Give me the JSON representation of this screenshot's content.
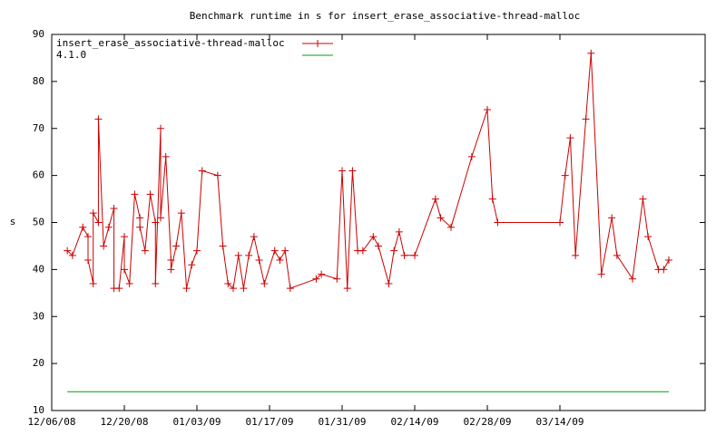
{
  "chart_data": {
    "type": "line",
    "title": "Benchmark runtime in s for insert_erase_associative-thread-malloc",
    "ylabel": "s",
    "xlim": [
      "2008-12-06",
      "2009-04-11"
    ],
    "xticks": [
      {
        "value": "2008-12-06",
        "label": "12/06/08"
      },
      {
        "value": "2008-12-20",
        "label": "12/20/08"
      },
      {
        "value": "2009-01-03",
        "label": "01/03/09"
      },
      {
        "value": "2009-01-17",
        "label": "01/17/09"
      },
      {
        "value": "2009-01-31",
        "label": "01/31/09"
      },
      {
        "value": "2009-02-14",
        "label": "02/14/09"
      },
      {
        "value": "2009-02-28",
        "label": "02/28/09"
      },
      {
        "value": "2009-03-14",
        "label": "03/14/09"
      }
    ],
    "ylim": [
      10,
      90
    ],
    "yticks": [
      10,
      20,
      30,
      40,
      50,
      60,
      70,
      80,
      90
    ],
    "legend": "top-left",
    "series": [
      {
        "name": "insert_erase_associative-thread-malloc",
        "color": "#cc0000",
        "marker": "+",
        "x": [
          "2008-12-09",
          "2008-12-10",
          "2008-12-12",
          "2008-12-13",
          "2008-12-13",
          "2008-12-14",
          "2008-12-14",
          "2008-12-15",
          "2008-12-15",
          "2008-12-16",
          "2008-12-17",
          "2008-12-18",
          "2008-12-18",
          "2008-12-19",
          "2008-12-20",
          "2008-12-20",
          "2008-12-21",
          "2008-12-22",
          "2008-12-23",
          "2008-12-23",
          "2008-12-24",
          "2008-12-25",
          "2008-12-26",
          "2008-12-26",
          "2008-12-27",
          "2008-12-27",
          "2008-12-28",
          "2008-12-29",
          "2008-12-29",
          "2008-12-30",
          "2008-12-31",
          "2009-01-01",
          "2009-01-02",
          "2009-01-03",
          "2009-01-04",
          "2009-01-07",
          "2009-01-08",
          "2009-01-09",
          "2009-01-10",
          "2009-01-11",
          "2009-01-12",
          "2009-01-13",
          "2009-01-14",
          "2009-01-15",
          "2009-01-16",
          "2009-01-18",
          "2009-01-19",
          "2009-01-20",
          "2009-01-21",
          "2009-01-26",
          "2009-01-27",
          "2009-01-30",
          "2009-01-31",
          "2009-02-01",
          "2009-02-02",
          "2009-02-03",
          "2009-02-04",
          "2009-02-06",
          "2009-02-07",
          "2009-02-09",
          "2009-02-10",
          "2009-02-11",
          "2009-02-12",
          "2009-02-14",
          "2009-02-18",
          "2009-02-19",
          "2009-02-21",
          "2009-02-25",
          "2009-02-28",
          "2009-03-01",
          "2009-03-02",
          "2009-03-14",
          "2009-03-15",
          "2009-03-16",
          "2009-03-17",
          "2009-03-19",
          "2009-03-20",
          "2009-03-22",
          "2009-03-24",
          "2009-03-25",
          "2009-03-28",
          "2009-03-30",
          "2009-03-31",
          "2009-04-02",
          "2009-04-03",
          "2009-04-04"
        ],
        "values": [
          44,
          43,
          49,
          47,
          42,
          37,
          52,
          50,
          72,
          45,
          49,
          53,
          36,
          36,
          47,
          40,
          37,
          56,
          51,
          49,
          44,
          56,
          50,
          37,
          70,
          51,
          64,
          42,
          40,
          45,
          52,
          36,
          41,
          44,
          61,
          60,
          45,
          37,
          36,
          43,
          36,
          43,
          47,
          42,
          37,
          44,
          42,
          44,
          36,
          38,
          39,
          38,
          61,
          36,
          61,
          44,
          44,
          47,
          45,
          37,
          44,
          48,
          43,
          43,
          55,
          51,
          49,
          64,
          74,
          55,
          50,
          50,
          60,
          68,
          43,
          72,
          86,
          39,
          51,
          43,
          38,
          55,
          47,
          40,
          40,
          42
        ]
      },
      {
        "name": "4.1.0",
        "color": "#00a000",
        "x": [
          "2008-12-09",
          "2009-04-04"
        ],
        "values": [
          14,
          14
        ]
      }
    ]
  }
}
